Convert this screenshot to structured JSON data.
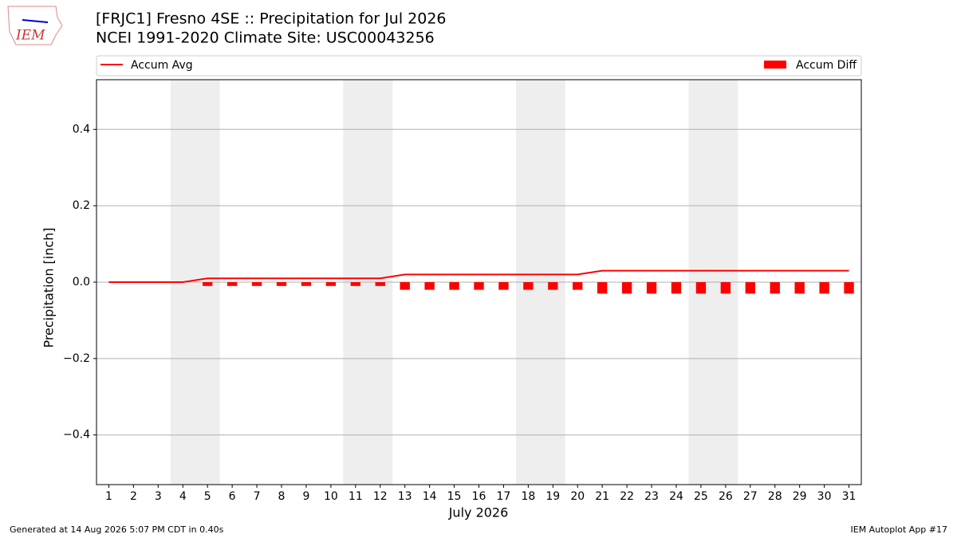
{
  "chart_data": {
    "type": "bar",
    "title": "[FRJC1] Fresno 4SE :: Precipitation for Jul 2026",
    "subtitle": "NCEI 1991-2020 Climate Site: USC00043256",
    "ylabel": "Precipitation [inch]",
    "xlabel": "July 2026",
    "logo": "IEM",
    "footer_left": "Generated at 14 Aug 2026 5:07 PM CDT in 0.40s",
    "footer_right": "IEM Autoplot App #17",
    "x": [
      1,
      2,
      3,
      4,
      5,
      6,
      7,
      8,
      9,
      10,
      11,
      12,
      13,
      14,
      15,
      16,
      17,
      18,
      19,
      20,
      21,
      22,
      23,
      24,
      25,
      26,
      27,
      28,
      29,
      30,
      31
    ],
    "series": [
      {
        "name": "Accum Avg",
        "type": "line",
        "color": "#ff0000",
        "values": [
          0,
          0,
          0,
          0,
          0.01,
          0.01,
          0.01,
          0.01,
          0.01,
          0.01,
          0.01,
          0.01,
          0.02,
          0.02,
          0.02,
          0.02,
          0.02,
          0.02,
          0.02,
          0.02,
          0.03,
          0.03,
          0.03,
          0.03,
          0.03,
          0.03,
          0.03,
          0.03,
          0.03,
          0.03,
          0.03
        ]
      },
      {
        "name": "Accum Diff",
        "type": "bar",
        "color": "#ff0000",
        "values": [
          0,
          0,
          0,
          0,
          -0.01,
          -0.01,
          -0.01,
          -0.01,
          -0.01,
          -0.01,
          -0.01,
          -0.01,
          -0.02,
          -0.02,
          -0.02,
          -0.02,
          -0.02,
          -0.02,
          -0.02,
          -0.02,
          -0.03,
          -0.03,
          -0.03,
          -0.03,
          -0.03,
          -0.03,
          -0.03,
          -0.03,
          -0.03,
          -0.03,
          -0.03
        ]
      }
    ],
    "weekend_spans": [
      [
        3.5,
        5.5
      ],
      [
        10.5,
        12.5
      ],
      [
        17.5,
        19.5
      ],
      [
        24.5,
        26.5
      ]
    ],
    "xlim": [
      0.5,
      31.5
    ],
    "ylim": [
      -0.53,
      0.53
    ],
    "xticks": [
      1,
      2,
      3,
      4,
      5,
      6,
      7,
      8,
      9,
      10,
      11,
      12,
      13,
      14,
      15,
      16,
      17,
      18,
      19,
      20,
      21,
      22,
      23,
      24,
      25,
      26,
      27,
      28,
      29,
      30,
      31
    ],
    "yticks": [
      {
        "value": -0.4,
        "label": "−0.4"
      },
      {
        "value": -0.2,
        "label": "−0.2"
      },
      {
        "value": 0,
        "label": "0.0"
      },
      0.2,
      0.4
    ],
    "grid": true
  }
}
